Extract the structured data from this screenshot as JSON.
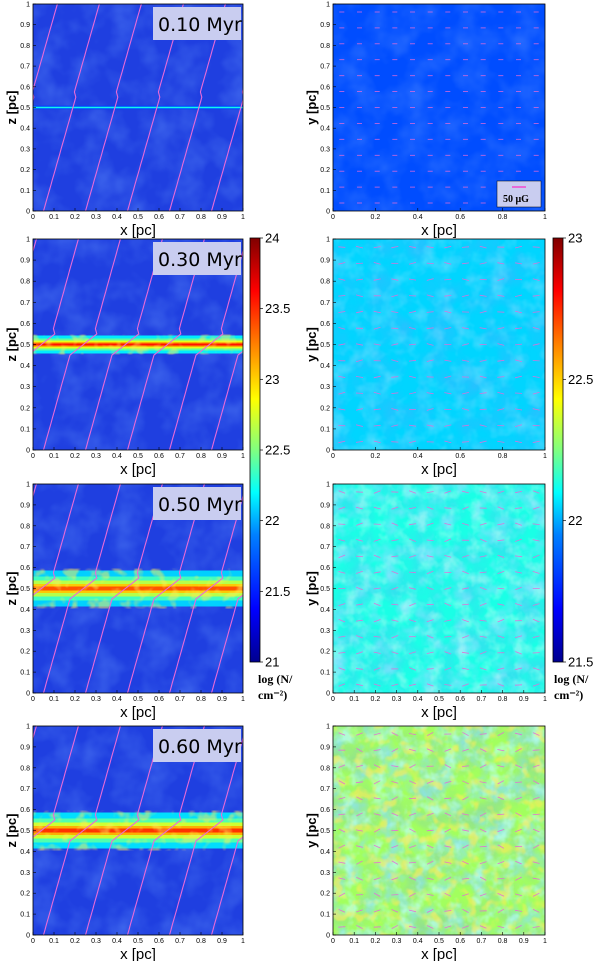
{
  "colors": {
    "cold": "#1f3fe0",
    "field_lines": "#e86ad8",
    "label_bg": "#c9cdf0",
    "colormap": [
      "#00008f",
      "#0000ff",
      "#0080ff",
      "#00ffff",
      "#80ff80",
      "#ffff00",
      "#ff8000",
      "#ff0000",
      "#800000"
    ]
  },
  "chart_data": [
    {
      "type": "heatmap",
      "panel": "xz",
      "time_label": "0.10 Myr",
      "xlabel": "x [pc]",
      "ylabel": "z [pc]",
      "xlim": [
        0,
        1
      ],
      "ylim": [
        0,
        1
      ],
      "layer_center": 0.5,
      "layer_log_peak": 22.3,
      "background_log": 21.1,
      "x_ticks": [
        "0",
        "0.1",
        "0.2",
        "0.3",
        "0.4",
        "0.5",
        "0.6",
        "0.7",
        "0.8",
        "0.9",
        "1"
      ],
      "y_ticks": [
        "0",
        "0.1",
        "0.2",
        "0.3",
        "0.4",
        "0.5",
        "0.6",
        "0.7",
        "0.8",
        "0.9",
        "1"
      ]
    },
    {
      "type": "heatmap",
      "panel": "xy",
      "xlabel": "x [pc]",
      "ylabel": "y [pc]",
      "xlim": [
        0,
        1
      ],
      "ylim": [
        0,
        1
      ],
      "background_log": 21.6,
      "scale_bar_label": "50 μG",
      "x_ticks": [
        "0",
        "0.2",
        "0.4",
        "0.6",
        "0.8",
        "1"
      ],
      "y_ticks": [
        "0",
        "0.1",
        "0.2",
        "0.3",
        "0.4",
        "0.5",
        "0.6",
        "0.7",
        "0.8",
        "0.9",
        "1"
      ]
    },
    {
      "type": "heatmap",
      "panel": "xz",
      "time_label": "0.30 Myr",
      "xlabel": "x [pc]",
      "ylabel": "z [pc]",
      "xlim": [
        0,
        1
      ],
      "ylim": [
        0,
        1
      ],
      "layer_center": 0.5,
      "layer_log_peak": 23.6,
      "background_log": 21.1,
      "x_ticks": [
        "0",
        "0.1",
        "0.2",
        "0.3",
        "0.4",
        "0.5",
        "0.6",
        "0.7",
        "0.8",
        "0.9",
        "1"
      ],
      "y_ticks": [
        "0",
        "0.1",
        "0.2",
        "0.3",
        "0.4",
        "0.5",
        "0.6",
        "0.7",
        "0.8",
        "0.9",
        "1"
      ]
    },
    {
      "type": "heatmap",
      "panel": "xy",
      "xlabel": "x [pc]",
      "ylabel": "y [pc]",
      "xlim": [
        0,
        1
      ],
      "ylim": [
        0,
        1
      ],
      "background_log": 22.0,
      "x_ticks": [
        "0",
        "0.2",
        "0.4",
        "0.6",
        "0.8",
        "1"
      ],
      "y_ticks": [
        "0",
        "0.1",
        "0.2",
        "0.3",
        "0.4",
        "0.5",
        "0.6",
        "0.7",
        "0.8",
        "0.9",
        "1"
      ]
    },
    {
      "type": "heatmap",
      "panel": "xz",
      "time_label": "0.50 Myr",
      "xlabel": "x [pc]",
      "ylabel": "z [pc]",
      "xlim": [
        0,
        1
      ],
      "ylim": [
        0,
        1
      ],
      "layer_center": 0.5,
      "layer_log_peak": 23.4,
      "background_log": 21.1,
      "x_ticks": [
        "0",
        "0.1",
        "0.2",
        "0.3",
        "0.4",
        "0.5",
        "0.6",
        "0.7",
        "0.8",
        "0.9",
        "1"
      ],
      "y_ticks": [
        "0",
        "0.1",
        "0.2",
        "0.3",
        "0.4",
        "0.5",
        "0.6",
        "0.7",
        "0.8",
        "0.9",
        "1"
      ]
    },
    {
      "type": "heatmap",
      "panel": "xy",
      "xlabel": "x [pc]",
      "ylabel": "y [pc]",
      "xlim": [
        0,
        1
      ],
      "ylim": [
        0,
        1
      ],
      "background_log": 22.1,
      "x_ticks": [
        "0",
        "0.1",
        "0.2",
        "0.3",
        "0.4",
        "0.5",
        "0.6",
        "0.7",
        "0.8",
        "0.9",
        "1"
      ],
      "y_ticks": [
        "0",
        "0.1",
        "0.2",
        "0.3",
        "0.4",
        "0.5",
        "0.6",
        "0.7",
        "0.8",
        "0.9",
        "1"
      ]
    },
    {
      "type": "heatmap",
      "panel": "xz",
      "time_label": "0.60 Myr",
      "xlabel": "x [pc]",
      "ylabel": "z [pc]",
      "xlim": [
        0,
        1
      ],
      "ylim": [
        0,
        1
      ],
      "layer_center": 0.5,
      "layer_log_peak": 23.5,
      "background_log": 21.1,
      "x_ticks": [
        "0",
        "0.1",
        "0.2",
        "0.3",
        "0.4",
        "0.5",
        "0.6",
        "0.7",
        "0.8",
        "0.9",
        "1"
      ],
      "y_ticks": [
        "0",
        "0.1",
        "0.2",
        "0.3",
        "0.4",
        "0.5",
        "0.6",
        "0.7",
        "0.8",
        "0.9",
        "1"
      ]
    },
    {
      "type": "heatmap",
      "panel": "xy",
      "xlabel": "x [pc]",
      "ylabel": "y [pc]",
      "xlim": [
        0,
        1
      ],
      "ylim": [
        0,
        1
      ],
      "background_log": 22.3,
      "x_ticks": [
        "0",
        "0.1",
        "0.2",
        "0.3",
        "0.4",
        "0.5",
        "0.6",
        "0.7",
        "0.8",
        "0.9",
        "1"
      ],
      "y_ticks": [
        "0",
        "0.1",
        "0.2",
        "0.3",
        "0.4",
        "0.5",
        "0.6",
        "0.7",
        "0.8",
        "0.9",
        "1"
      ]
    }
  ],
  "colorbars": [
    {
      "range": [
        21,
        24
      ],
      "ticks": [
        "24",
        "23.5",
        "23",
        "22.5",
        "22",
        "21.5",
        "21"
      ],
      "unit_lines": [
        "log (N/",
        "cm⁻²)"
      ]
    },
    {
      "range": [
        21.5,
        23
      ],
      "ticks": [
        "23",
        "22.5",
        "22",
        "21.5"
      ],
      "unit_lines": [
        "log (N/",
        "cm⁻²)"
      ]
    }
  ]
}
